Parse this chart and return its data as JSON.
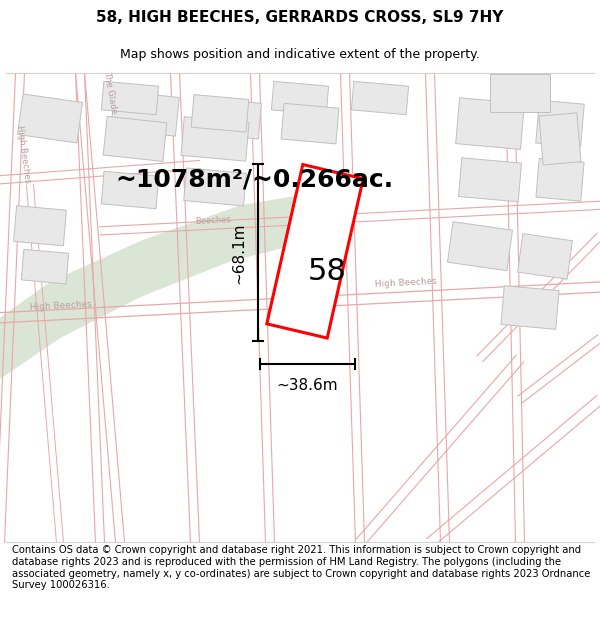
{
  "title": "58, HIGH BEECHES, GERRARDS CROSS, SL9 7HY",
  "subtitle": "Map shows position and indicative extent of the property.",
  "footer": "Contains OS data © Crown copyright and database right 2021. This information is subject to Crown copyright and database rights 2023 and is reproduced with the permission of HM Land Registry. The polygons (including the associated geometry, namely x, y co-ordinates) are subject to Crown copyright and database rights 2023 Ordnance Survey 100026316.",
  "area_label": "~1078m²/~0.266ac.",
  "width_label": "~38.6m",
  "height_label": "~68.1m",
  "property_number": "58",
  "map_bg": "#f7f6f4",
  "road_line_color": "#e8a8a8",
  "road_label_color": "#b8a0a0",
  "block_fill": "#e8e8e8",
  "block_stroke": "#c8c8c8",
  "green_fill": "#d0ddc8",
  "property_stroke": "#ff0000",
  "property_fill": "#ffffff",
  "dim_color": "#000000",
  "title_fontsize": 11,
  "subtitle_fontsize": 9,
  "footer_fontsize": 7.2,
  "area_fontsize": 18,
  "number_fontsize": 22,
  "dim_fontsize": 11
}
